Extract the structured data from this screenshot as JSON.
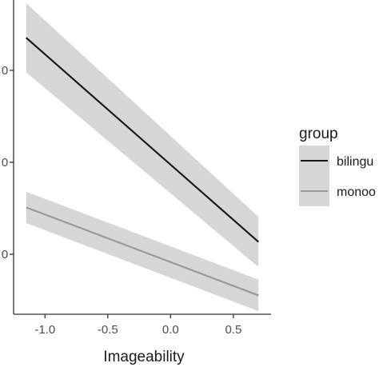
{
  "chart_data": {
    "type": "line",
    "xlabel": "Imageability",
    "ylabel": "",
    "xlim": [
      -1.25,
      0.8
    ],
    "ylim": [
      0,
      1
    ],
    "x_ticks": [
      -1.0,
      -0.5,
      0.0,
      0.5
    ],
    "x_tick_labels": [
      "-1.0",
      "-0.5",
      "0.0",
      "0.5"
    ],
    "y_tick_labels": [
      "0",
      "0",
      "0"
    ],
    "grid": false,
    "legend": {
      "title": "group",
      "placement": "right"
    },
    "series": [
      {
        "name": "bilingu",
        "color": "#1a1a1a",
        "x": [
          -1.15,
          0.7
        ],
        "y": [
          0.88,
          0.23
        ],
        "ci_lower": [
          0.77,
          0.15
        ],
        "ci_upper": [
          0.99,
          0.31
        ]
      },
      {
        "name": "monoo",
        "color": "#9a9a9a",
        "x": [
          -1.15,
          0.7
        ],
        "y": [
          0.34,
          0.06
        ],
        "ci_lower": [
          0.29,
          0.01
        ],
        "ci_upper": [
          0.39,
          0.11
        ]
      }
    ],
    "ribbon_color": "#d6d6d6"
  }
}
